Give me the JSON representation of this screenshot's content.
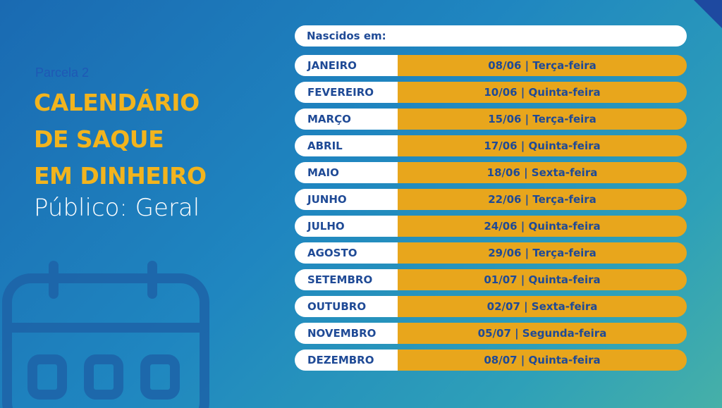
{
  "left": {
    "parcela": "Parcela 2",
    "title_lines": [
      "CALENDÁRIO",
      "DE SAQUE",
      "EM DINHEIRO"
    ],
    "publico": "Público: Geral"
  },
  "table": {
    "header": "Nascidos em:",
    "rows": [
      {
        "month": "JANEIRO",
        "date": "08/06 | Terça-feira"
      },
      {
        "month": "FEVEREIRO",
        "date": "10/06 | Quinta-feira"
      },
      {
        "month": "MARÇO",
        "date": "15/06 | Terça-feira"
      },
      {
        "month": "ABRIL",
        "date": "17/06 | Quinta-feira"
      },
      {
        "month": "MAIO",
        "date": "18/06 | Sexta-feira"
      },
      {
        "month": "JUNHO",
        "date": "22/06 | Terça-feira"
      },
      {
        "month": "JULHO",
        "date": "24/06 | Quinta-feira"
      },
      {
        "month": "AGOSTO",
        "date": "29/06 | Terça-feira"
      },
      {
        "month": "SETEMBRO",
        "date": "01/07 | Quinta-feira"
      },
      {
        "month": "OUTUBRO",
        "date": "02/07 | Sexta-feira"
      },
      {
        "month": "NOVEMBRO",
        "date": "05/07 | Segunda-feira"
      },
      {
        "month": "DEZEMBRO",
        "date": "08/07 | Quinta-feira"
      }
    ]
  },
  "colors": {
    "accent_yellow": "#f2b41e",
    "date_bar": "#e8a61c",
    "text_blue": "#1f4a96"
  },
  "icons": {
    "decor": "calendar-icon"
  }
}
